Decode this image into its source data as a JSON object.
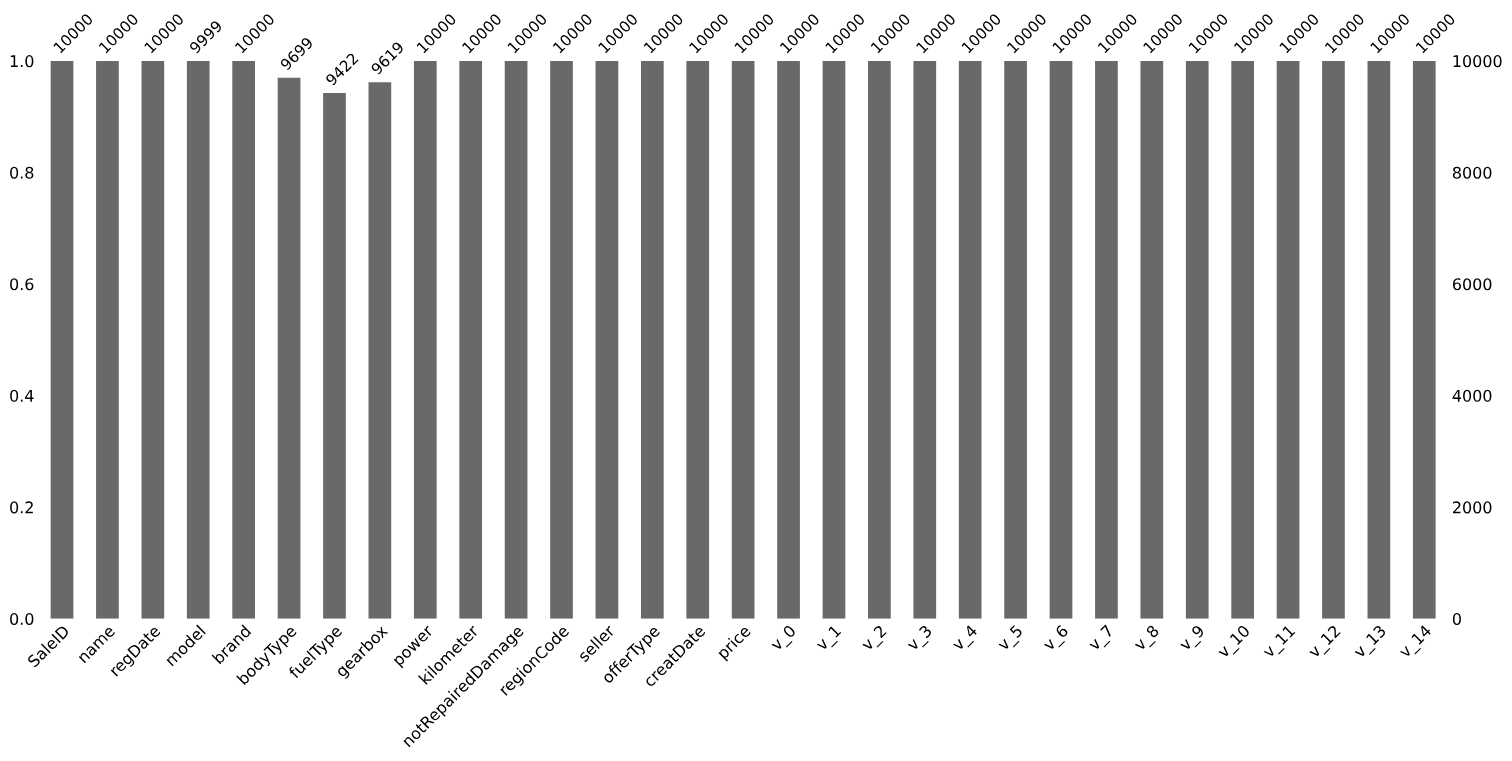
{
  "chart_data": {
    "type": "bar",
    "categories": [
      "SaleID",
      "name",
      "regDate",
      "model",
      "brand",
      "bodyType",
      "fuelType",
      "gearbox",
      "power",
      "kilometer",
      "notRepairedDamage",
      "regionCode",
      "seller",
      "offerType",
      "creatDate",
      "price",
      "v_0",
      "v_1",
      "v_2",
      "v_3",
      "v_4",
      "v_5",
      "v_6",
      "v_7",
      "v_8",
      "v_9",
      "v_10",
      "v_11",
      "v_12",
      "v_13",
      "v_14"
    ],
    "series": [
      {
        "color": "#696969",
        "axis": "y2",
        "values": [
          10000,
          10000,
          10000,
          9999,
          10000,
          9699,
          9422,
          9619,
          10000,
          10000,
          10000,
          10000,
          10000,
          10000,
          10000,
          10000,
          10000,
          10000,
          10000,
          10000,
          10000,
          10000,
          10000,
          10000,
          10000,
          10000,
          10000,
          10000,
          10000,
          10000,
          10000
        ]
      }
    ],
    "ylim": [
      0,
      1
    ],
    "yticks": [
      {
        "value": 0,
        "label": "0.0"
      },
      {
        "value": 0.2,
        "label": "0.2"
      },
      {
        "value": 0.4,
        "label": "0.4"
      },
      {
        "value": 0.6,
        "label": "0.6"
      },
      {
        "value": 0.8,
        "label": "0.8"
      },
      {
        "value": 1,
        "label": "1.0"
      }
    ],
    "y2lim": [
      0,
      10000
    ],
    "y2ticks": [
      0,
      2000,
      4000,
      6000,
      8000,
      10000
    ],
    "data_labels": true,
    "grid": false,
    "legend": false
  }
}
